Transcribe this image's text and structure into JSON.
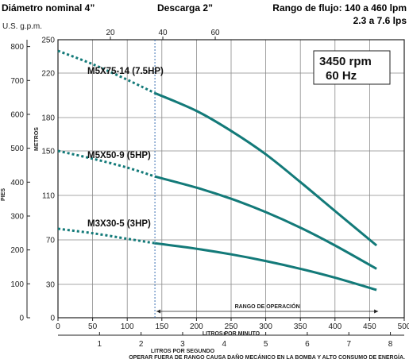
{
  "header": {
    "left": "Diámetro nominal 4”",
    "center": "Descarga 2”",
    "right_line1": "Rango de flujo: 140 a 460 lpm",
    "right_line2": "2.3 a 7.6 lps"
  },
  "info_box": {
    "line1": "3450 rpm",
    "line2": "60 Hz"
  },
  "footer_note": "OPERAR FUERA DE RANGO CAUSA DAÑO MECÁNICO EN LA BOMBA Y ALTO CONSUMO DE ENERGÍA.",
  "colors": {
    "curve": "#137a79",
    "grid": "#8a8a8a",
    "frame": "#222222"
  },
  "chart_data": {
    "type": "line",
    "axes": {
      "x_top": {
        "label": "U.S. g.p.m.",
        "ticks": [
          20,
          40,
          60
        ]
      },
      "x_bottom_lpm": {
        "label": "LITROS POR MINUTO",
        "ticks": [
          0,
          50,
          100,
          150,
          200,
          250,
          300,
          350,
          400,
          450,
          500
        ],
        "range": [
          0,
          500
        ]
      },
      "x_bottom_lps": {
        "label": "LITROS POR SEGUNDO",
        "ticks": [
          1,
          2,
          3,
          4,
          5,
          6,
          7,
          8
        ]
      },
      "y_left_feet": {
        "label": "PIES",
        "ticks": [
          0,
          100,
          200,
          300,
          400,
          500,
          600,
          700,
          800
        ]
      },
      "y_inner_meters": {
        "label": "METROS",
        "ticks": [
          0,
          30,
          70,
          110,
          150,
          180,
          220,
          250
        ],
        "range": [
          0,
          250
        ]
      }
    },
    "operating_range": {
      "label": "RANGO DE OPERACIÓN",
      "x_start": 140,
      "x_end": 460
    },
    "grid": true,
    "series": [
      {
        "name": "M5X75-14 (7.5HP)",
        "out_of_range": [
          [
            0,
            240
          ],
          [
            50,
            228
          ],
          [
            100,
            214
          ],
          [
            140,
            202
          ]
        ],
        "in_range": [
          [
            140,
            202
          ],
          [
            200,
            186
          ],
          [
            250,
            168
          ],
          [
            300,
            147
          ],
          [
            350,
            122
          ],
          [
            400,
            96
          ],
          [
            460,
            65
          ]
        ]
      },
      {
        "name": "M5X50-9 (5HP)",
        "out_of_range": [
          [
            0,
            150
          ],
          [
            50,
            143
          ],
          [
            100,
            135
          ],
          [
            140,
            127
          ]
        ],
        "in_range": [
          [
            140,
            127
          ],
          [
            200,
            117
          ],
          [
            250,
            107
          ],
          [
            300,
            95
          ],
          [
            350,
            81
          ],
          [
            400,
            65
          ],
          [
            460,
            44
          ]
        ]
      },
      {
        "name": "M3X30-5 (3HP)",
        "out_of_range": [
          [
            0,
            80
          ],
          [
            50,
            76
          ],
          [
            100,
            71
          ],
          [
            140,
            67
          ]
        ],
        "in_range": [
          [
            140,
            67
          ],
          [
            200,
            62
          ],
          [
            250,
            57
          ],
          [
            300,
            51
          ],
          [
            350,
            44
          ],
          [
            400,
            36
          ],
          [
            460,
            25
          ]
        ]
      }
    ]
  }
}
